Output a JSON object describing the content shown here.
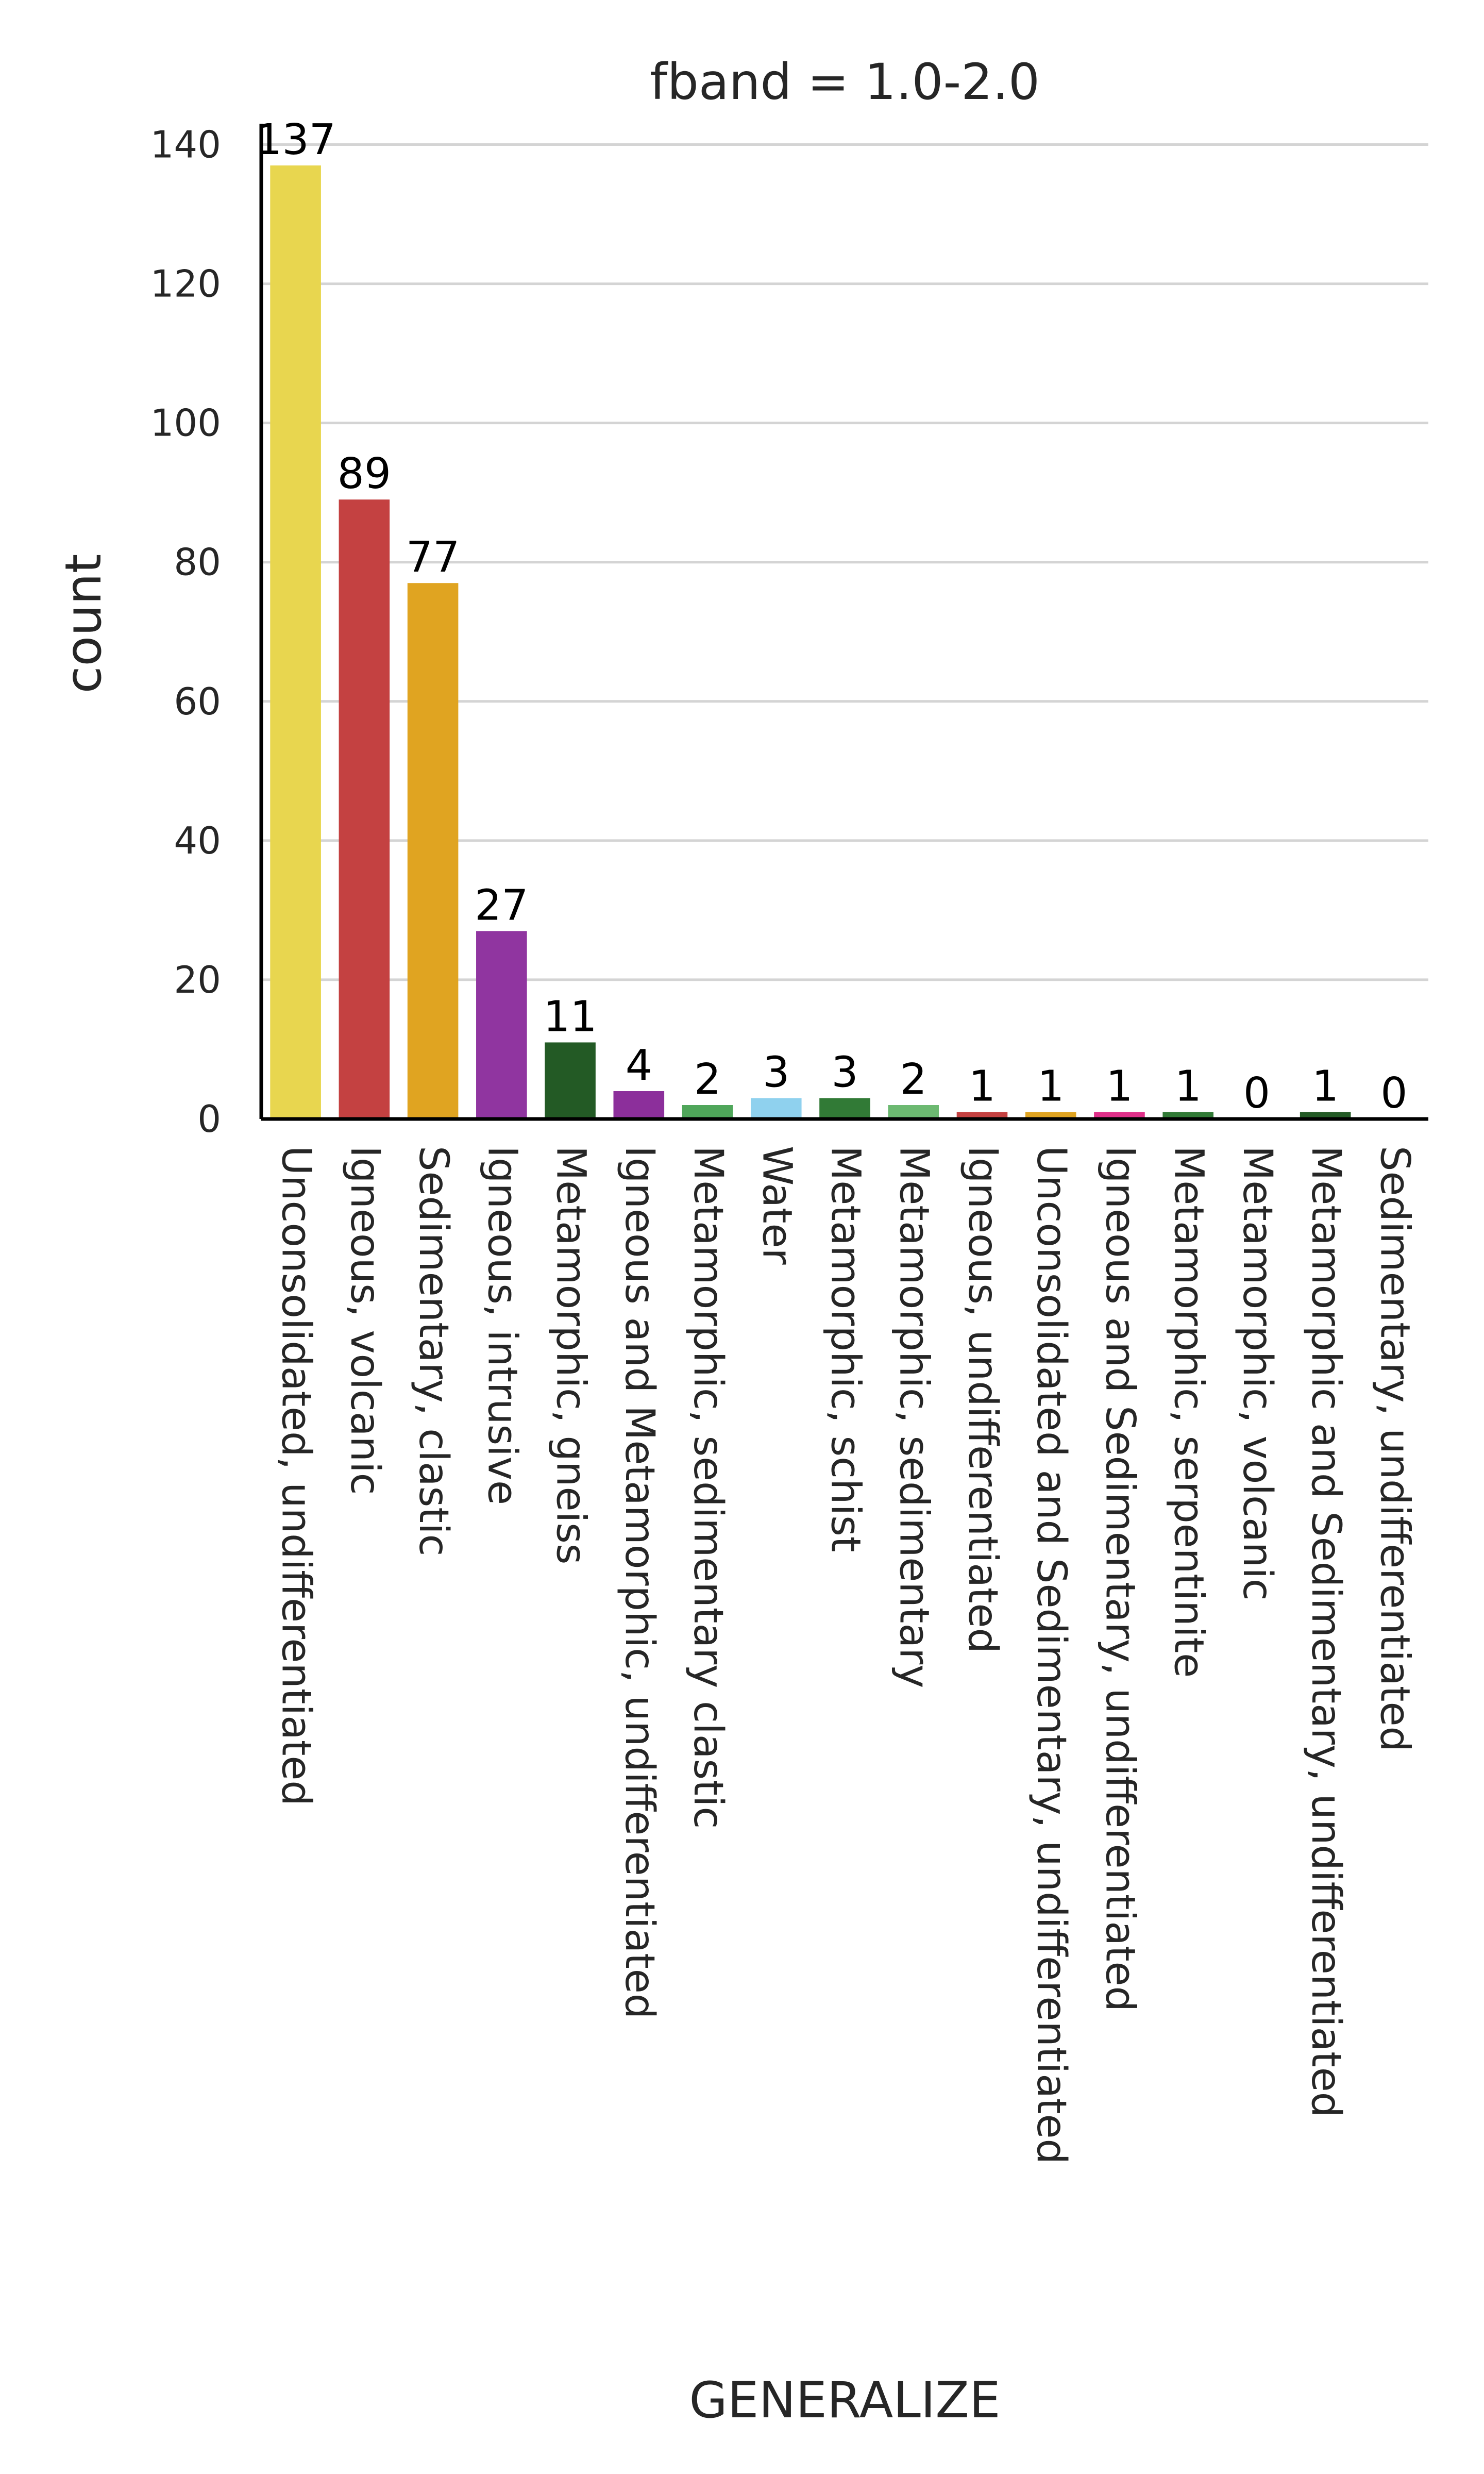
{
  "chart_data": {
    "type": "bar",
    "title": "fband = 1.0-2.0",
    "xlabel": "GENERALIZE",
    "ylabel": "count",
    "ylim": [
      0,
      143
    ],
    "yticks": [
      "0",
      "20",
      "40",
      "60",
      "80",
      "100",
      "120",
      "140"
    ],
    "grid": "horizontal",
    "categories": [
      "Unconsolidated, undifferentiated",
      "Igneous, volcanic",
      "Sedimentary, clastic",
      "Igneous, intrusive",
      "Metamorphic, gneiss",
      "Igneous and Metamorphic, undifferentiated",
      "Metamorphic, sedimentary clastic",
      "Water",
      "Metamorphic, schist",
      "Metamorphic, sedimentary",
      "Igneous, undifferentiated",
      "Unconsolidated and Sedimentary, undifferentiated",
      "Igneous and Sedimentary, undifferentiated",
      "Metamorphic, serpentinite",
      "Metamorphic, volcanic",
      "Metamorphic and Sedimentary, undifferentiated",
      "Sedimentary, undifferentiated"
    ],
    "values": [
      137,
      89,
      77,
      27,
      11,
      4,
      2,
      3,
      3,
      2,
      1,
      1,
      1,
      1,
      0,
      1,
      0
    ],
    "data_labels": [
      "137",
      "89",
      "77",
      "27",
      "11",
      "4",
      "2",
      "3",
      "3",
      "2",
      "1",
      "1",
      "1",
      "1",
      "0",
      "1",
      "0"
    ],
    "colors": [
      "#e8d64f",
      "#c44141",
      "#e0a421",
      "#9035a0",
      "#235a25",
      "#8c2f9b",
      "#4fa65a",
      "#8fd1ee",
      "#317a36",
      "#6cb971",
      "#c44141",
      "#e0a421",
      "#e0308a",
      "#317a36",
      "#9035a0",
      "#235a25",
      "#3c3c3c"
    ],
    "grid_color": "#d4d4d4",
    "axis_color": "#000000"
  }
}
